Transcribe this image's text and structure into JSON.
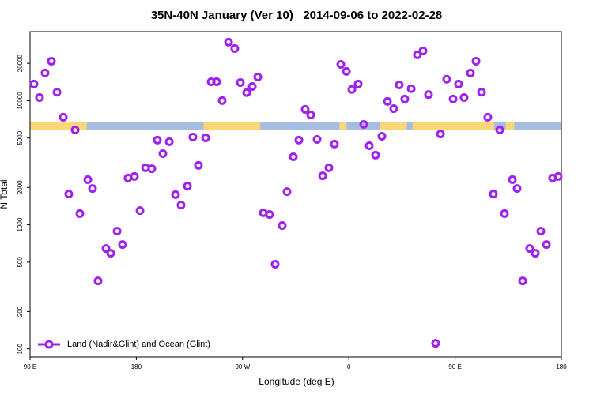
{
  "chart_data": {
    "type": "scatter",
    "title": "35N-40N January (Ver 10)   2014-09-06 to 2022-02-28",
    "xlabel": "Longitude (deg E)",
    "ylabel": "N Total",
    "log_y": true,
    "legend": "bottom-left",
    "xlim": [
      90,
      540
    ],
    "ylim": [
      86,
      36000
    ],
    "xticks": [
      {
        "value": 90,
        "label": "90 E"
      },
      {
        "value": 180,
        "label": "180"
      },
      {
        "value": 270,
        "label": "90 W"
      },
      {
        "value": 360,
        "label": "0"
      },
      {
        "value": 450,
        "label": "90 E"
      },
      {
        "value": 540,
        "label": "180"
      }
    ],
    "yticks": [
      100,
      200,
      500,
      1000,
      2000,
      5000,
      10000,
      20000
    ],
    "surface_band": {
      "ylim": [
        5800,
        6750
      ],
      "ocean_color": "#a5bde0",
      "land_color": "#fcd679",
      "land_segments": [
        [
          90,
          138
        ],
        [
          237,
          285
        ],
        [
          352,
          358
        ],
        [
          386,
          409
        ],
        [
          414,
          483
        ],
        [
          493,
          500
        ]
      ]
    },
    "series": [
      {
        "name": "Land (Nadir&Glint) and Ocean (Glint)",
        "color": "#a020f0",
        "x": [
          93.3,
          98.0,
          102.7,
          108.1,
          112.8,
          118.1,
          122.8,
          128.2,
          132.2,
          138.9,
          142.9,
          147.6,
          154.3,
          158.3,
          163.7,
          168.3,
          173.0,
          178.4,
          183.1,
          187.8,
          193.1,
          197.8,
          202.5,
          207.9,
          213.2,
          217.9,
          223.3,
          227.9,
          232.6,
          238.7,
          243.4,
          248.0,
          252.7,
          258.1,
          263.4,
          268.1,
          273.5,
          278.2,
          282.9,
          287.6,
          292.9,
          297.6,
          303.6,
          307.6,
          313.0,
          317.7,
          323.0,
          327.7,
          333.1,
          337.8,
          343.1,
          347.8,
          353.2,
          357.9,
          362.6,
          367.9,
          372.6,
          377.3,
          382.6,
          388.0,
          392.7,
          398.0,
          402.7,
          407.4,
          412.8,
          418.1,
          422.8,
          427.5,
          433.5,
          437.6,
          442.9,
          448.3,
          452.9,
          457.6,
          463.0,
          467.7,
          472.4,
          477.7,
          482.4,
          487.8,
          491.8,
          498.5,
          502.5,
          507.2,
          513.2,
          517.9,
          522.6,
          527.3,
          532.6,
          537.3
        ],
        "values": [
          13600,
          10600,
          16700,
          20800,
          11700,
          7350,
          1770,
          5810,
          1230,
          2310,
          1960,
          353,
          644,
          590,
          889,
          693,
          2380,
          2450,
          1300,
          2880,
          2830,
          4810,
          3740,
          4670,
          1750,
          1440,
          2050,
          5090,
          3010,
          5020,
          14200,
          14200,
          10000,
          29600,
          26300,
          14000,
          11600,
          13000,
          15500,
          1250,
          1210,
          481,
          986,
          1850,
          3530,
          4810,
          8510,
          7670,
          4870,
          2480,
          2880,
          4470,
          19600,
          17200,
          12300,
          13600,
          6440,
          4330,
          3640,
          5170,
          9860,
          8620,
          13400,
          10300,
          12500,
          23400,
          25200,
          11200,
          111,
          5390,
          14900,
          10300,
          13600,
          10600,
          16700,
          20800,
          11700,
          7350,
          1770,
          5810,
          1230,
          2310,
          1960,
          353,
          644,
          590,
          889,
          693,
          2380,
          2450
        ]
      }
    ]
  }
}
